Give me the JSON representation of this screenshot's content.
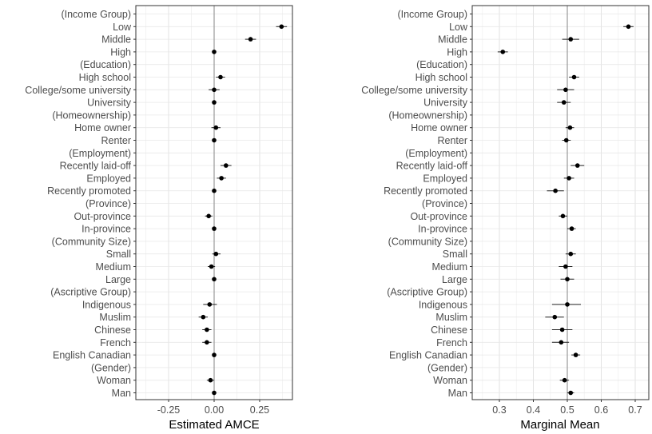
{
  "chart_data": [
    {
      "type": "scatter",
      "subtype": "dot-and-whisker",
      "xlabel": "Estimated AMCE",
      "ylabel": "",
      "xlim": [
        -0.43,
        0.43
      ],
      "xticks": [
        -0.25,
        0.0,
        0.25
      ],
      "xtick_labels": [
        "-0.25",
        "0.00",
        "0.25"
      ],
      "reference_line": 0,
      "grid": true,
      "categories": [
        "(Income Group)",
        "Low",
        "Middle",
        "High",
        "(Education)",
        "High school",
        "College/some university",
        "University",
        "(Homeownership)",
        "Home owner",
        "Renter",
        "(Employment)",
        "Recently laid-off",
        "Employed",
        "Recently promoted",
        "(Province)",
        "Out-province",
        "In-province",
        "(Community Size)",
        "Small",
        "Medium",
        "Large",
        "(Ascriptive Group)",
        "Indigenous",
        "Muslim",
        "Chinese",
        "French",
        "English Canadian",
        "(Gender)",
        "Woman",
        "Man"
      ],
      "values": [
        null,
        0.37,
        0.2,
        0.0,
        null,
        0.035,
        0.0,
        0.0,
        null,
        0.01,
        0.0,
        null,
        0.065,
        0.04,
        0.0,
        null,
        -0.03,
        0.0,
        null,
        0.01,
        -0.015,
        0.0,
        null,
        -0.025,
        -0.06,
        -0.04,
        -0.04,
        0.0,
        null,
        -0.02,
        0.0
      ],
      "ci_low": [
        null,
        0.34,
        0.17,
        0.0,
        null,
        0.01,
        -0.03,
        0.0,
        null,
        -0.015,
        0.0,
        null,
        0.035,
        0.015,
        0.0,
        null,
        -0.05,
        0.0,
        null,
        -0.01,
        -0.035,
        0.0,
        null,
        -0.06,
        -0.085,
        -0.065,
        -0.065,
        0.0,
        null,
        -0.04,
        0.0
      ],
      "ci_high": [
        null,
        0.4,
        0.23,
        0.0,
        null,
        0.06,
        0.03,
        0.0,
        null,
        0.035,
        0.0,
        null,
        0.095,
        0.065,
        0.0,
        null,
        -0.01,
        0.0,
        null,
        0.035,
        0.005,
        0.0,
        null,
        0.015,
        -0.035,
        -0.015,
        -0.015,
        0.0,
        null,
        0.0,
        0.0
      ]
    },
    {
      "type": "scatter",
      "subtype": "dot-and-whisker",
      "xlabel": "Marginal Mean",
      "ylabel": "",
      "xlim": [
        0.22,
        0.74
      ],
      "xticks": [
        0.3,
        0.4,
        0.5,
        0.6,
        0.7
      ],
      "xtick_labels": [
        "0.3",
        "0.4",
        "0.5",
        "0.6",
        "0.7"
      ],
      "reference_line": 0.5,
      "grid": true,
      "categories": [
        "(Income Group)",
        "Low",
        "Middle",
        "High",
        "(Education)",
        "High school",
        "College/some university",
        "University",
        "(Homeownership)",
        "Home owner",
        "Renter",
        "(Employment)",
        "Recently laid-off",
        "Employed",
        "Recently promoted",
        "(Province)",
        "Out-province",
        "In-province",
        "(Community Size)",
        "Small",
        "Medium",
        "Large",
        "(Ascriptive Group)",
        "Indigenous",
        "Muslim",
        "Chinese",
        "French",
        "English Canadian",
        "(Gender)",
        "Woman",
        "Man"
      ],
      "values": [
        null,
        0.68,
        0.51,
        0.31,
        null,
        0.52,
        0.495,
        0.49,
        null,
        0.508,
        0.497,
        null,
        0.53,
        0.505,
        0.465,
        null,
        0.487,
        0.513,
        null,
        0.51,
        0.495,
        0.5,
        null,
        0.5,
        0.463,
        0.485,
        0.482,
        0.525,
        null,
        0.492,
        0.51
      ],
      "ci_low": [
        null,
        0.665,
        0.485,
        0.295,
        null,
        0.505,
        0.47,
        0.47,
        null,
        0.495,
        0.485,
        null,
        0.51,
        0.49,
        0.44,
        null,
        0.475,
        0.5,
        null,
        0.495,
        0.475,
        0.48,
        null,
        0.455,
        0.435,
        0.455,
        0.455,
        0.512,
        null,
        0.478,
        0.5
      ],
      "ci_high": [
        null,
        0.695,
        0.535,
        0.325,
        null,
        0.535,
        0.52,
        0.51,
        null,
        0.52,
        0.51,
        null,
        0.55,
        0.52,
        0.49,
        null,
        0.5,
        0.525,
        null,
        0.525,
        0.515,
        0.52,
        null,
        0.54,
        0.49,
        0.515,
        0.505,
        0.538,
        null,
        0.505,
        0.52
      ]
    }
  ]
}
